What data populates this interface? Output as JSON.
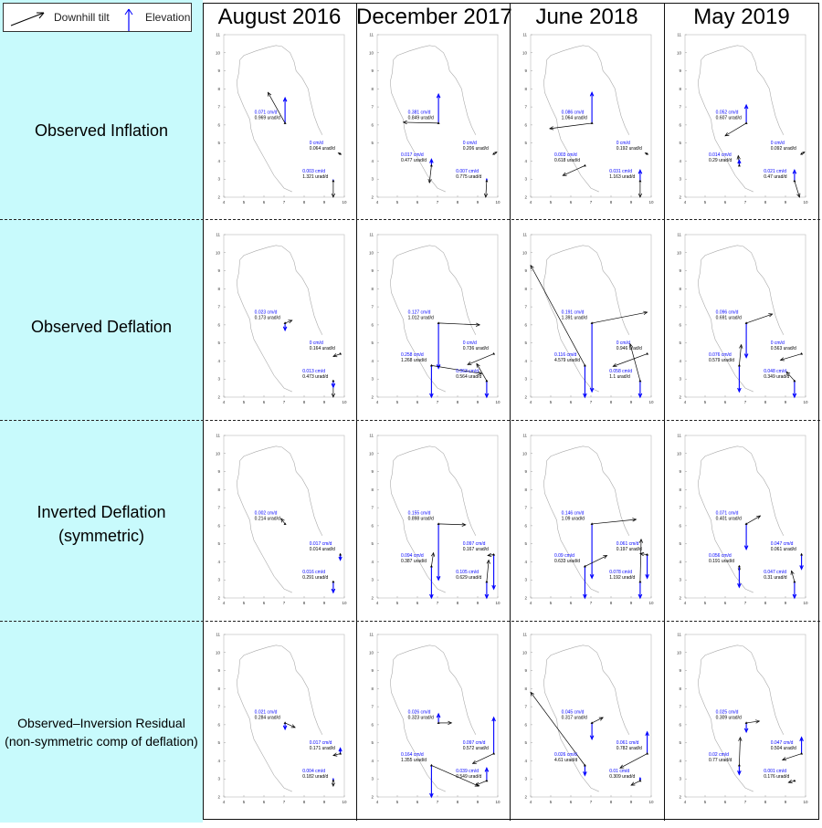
{
  "legend": {
    "tilt_label": "Downhill tilt",
    "elevation_label": "Elevation",
    "tilt_color": "#000000",
    "elevation_color": "#0000ff"
  },
  "columns": [
    "August 2016",
    "December 2017",
    "June 2018",
    "May 2019"
  ],
  "rows": [
    {
      "label_lines": [
        "Observed Inflation"
      ]
    },
    {
      "label_lines": [
        "Observed Deflation"
      ]
    },
    {
      "label_lines": [
        "Inverted Deflation",
        "(symmetric)"
      ]
    },
    {
      "label_lines": [
        "Observed–Inversion Residual",
        "(non-symmetric comp of deflation)"
      ]
    }
  ],
  "colors": {
    "background_left": "#c8fafc",
    "elevation": "#0000ff",
    "tilt": "#000000",
    "outline": "#aaaaaa"
  },
  "chart_data": {
    "type": "scatter",
    "description_type": "vector map grid",
    "xlim": [
      4,
      10
    ],
    "ylim": [
      2,
      11
    ],
    "xticks": [
      "4",
      "5",
      "6",
      "7",
      "8",
      "9",
      "10"
    ],
    "yticks": [
      "2",
      "3",
      "4",
      "5",
      "6",
      "7",
      "8",
      "9",
      "10",
      "11"
    ],
    "grid": false,
    "stations": {
      "A": [
        7.05,
        6.1
      ],
      "B": [
        6.7,
        3.75
      ],
      "C": [
        9.8,
        4.4
      ],
      "D": [
        9.45,
        2.9
      ]
    },
    "outline": [
      [
        7.4,
        2.3
      ],
      [
        7.0,
        2.5
      ],
      [
        6.5,
        3.2
      ],
      [
        6.0,
        4.2
      ],
      [
        5.5,
        5.2
      ],
      [
        5.35,
        5.8
      ],
      [
        5.3,
        6.3
      ],
      [
        5.0,
        7.0
      ],
      [
        4.7,
        7.8
      ],
      [
        4.65,
        8.4
      ],
      [
        4.75,
        8.9
      ],
      [
        4.8,
        9.6
      ],
      [
        5.0,
        9.85
      ],
      [
        5.6,
        10.1
      ],
      [
        6.2,
        10.3
      ],
      [
        6.6,
        10.4
      ],
      [
        6.9,
        10.35
      ],
      [
        7.3,
        10.0
      ],
      [
        7.5,
        9.5
      ],
      [
        7.6,
        9.0
      ],
      [
        7.9,
        8.6
      ],
      [
        8.2,
        8.0
      ],
      [
        8.3,
        7.4
      ],
      [
        8.5,
        6.5
      ],
      [
        8.7,
        5.9
      ],
      [
        8.9,
        5.45
      ]
    ],
    "panels": [
      [
        {
          "A": {
            "elev": "0.071 cm/d",
            "tilt": "0.969 urad/d",
            "tilt_end": [
              6.2,
              7.8
            ],
            "elev_end": 7.5
          },
          "C": {
            "elev": "0 cm/d",
            "tilt": "0.064 urad/d",
            "tilt_end": [
              9.7,
              4.45
            ],
            "elev_end": 4.4
          },
          "D": {
            "elev": "0.003 cm/d",
            "tilt": "1.321 urad/d",
            "tilt_end": [
              9.45,
              2.0
            ],
            "elev_end": 2.95
          }
        },
        {
          "A": {
            "elev": "0.381 cm/d",
            "tilt": "0.849 urad/d",
            "tilt_end": [
              5.3,
              6.15
            ],
            "elev_end": 7.7
          },
          "B": {
            "elev": "0.017 cm/d",
            "tilt": "0.477 urad/d",
            "tilt_end": [
              6.6,
              2.8
            ],
            "elev_end": 4.1
          },
          "C": {
            "elev": "0 cm/d",
            "tilt": "0.206 urad/d",
            "tilt_end": [
              9.95,
              4.5
            ],
            "elev_end": 4.4
          },
          "D": {
            "elev": "0.007 cm/d",
            "tilt": "0.775 urad/d",
            "tilt_end": [
              9.4,
              2.0
            ],
            "elev_end": 3.0
          }
        },
        {
          "A": {
            "elev": "0.086 cm/d",
            "tilt": "1.064 urad/d",
            "tilt_end": [
              4.95,
              5.8
            ],
            "elev_end": 7.8
          },
          "B": {
            "elev": "0.003 cm/d",
            "tilt": "0.618 urad/d",
            "tilt_end": [
              5.6,
              3.2
            ],
            "elev_end": 3.75
          },
          "C": {
            "elev": "0 cm/d",
            "tilt": "0.192 urad/d",
            "tilt_end": [
              9.7,
              4.45
            ],
            "elev_end": 4.4
          },
          "D": {
            "elev": "0.031 cm/d",
            "tilt": "1.163 urad/d",
            "tilt_end": [
              9.45,
              2.0
            ],
            "elev_end": 3.5
          }
        },
        {
          "A": {
            "elev": "0.052 cm/d",
            "tilt": "0.607 urad/d",
            "tilt_end": [
              6.0,
              5.4
            ],
            "elev_end": 7.1
          },
          "B": {
            "elev": "0.014 cm/d",
            "tilt": "0.29 urad/d",
            "tilt_end": [
              6.65,
              4.3
            ],
            "elev_end": 4.05
          },
          "C": {
            "elev": "0 cm/d",
            "tilt": "0.092 urad/d",
            "tilt_end": [
              9.95,
              4.5
            ],
            "elev_end": 4.4
          },
          "D": {
            "elev": "0.021 cm/d",
            "tilt": "0.47 urad/d",
            "tilt_end": [
              9.7,
              2.0
            ],
            "elev_end": 3.5
          }
        }
      ],
      [
        {
          "A": {
            "elev": "0.023 cm/d",
            "tilt": "0.173 urad/d",
            "tilt_end": [
              7.4,
              6.25
            ],
            "elev_end": 5.7
          },
          "C": {
            "elev": "0 cm/d",
            "tilt": "0.164 urad/d",
            "tilt_end": [
              9.45,
              4.25
            ],
            "elev_end": 4.4
          },
          "D": {
            "elev": "0.013 cm/d",
            "tilt": "0.473 urad/d",
            "tilt_end": [
              9.45,
              2.0
            ],
            "elev_end": 2.55
          }
        },
        {
          "A": {
            "elev": "0.127 cm/d",
            "tilt": "1.012 urad/d",
            "tilt_end": [
              9.1,
              6.0
            ],
            "elev_end": 3.6
          },
          "B": {
            "elev": "0.258 cm/d",
            "tilt": "1.268 urad/d",
            "tilt_end": [
              9.2,
              3.3
            ],
            "elev_end": 2.0
          },
          "C": {
            "elev": "0 cm/d",
            "tilt": "0.736 urad/d",
            "tilt_end": [
              8.5,
              3.8
            ],
            "elev_end": 4.4
          },
          "D": {
            "elev": "0.063 cm/d",
            "tilt": "0.564 urad/d",
            "tilt_end": [
              8.95,
              3.85
            ],
            "elev_end": 2.0
          }
        },
        {
          "A": {
            "elev": "0.191 cm/d",
            "tilt": "1.391 urad/d",
            "tilt_end": [
              9.8,
              6.7
            ],
            "elev_end": 2.3
          },
          "B": {
            "elev": "0.116 cm/d",
            "tilt": "4.579 urad/d",
            "tilt_end": [
              4.0,
              9.3
            ],
            "elev_end": 2.0
          },
          "C": {
            "elev": "0 cm/d",
            "tilt": "0.946 urad/d",
            "tilt_end": [
              8.1,
              3.7
            ],
            "elev_end": 4.4
          },
          "D": {
            "elev": "0.058 cm/d",
            "tilt": "1.1 urad/d",
            "tilt_end": [
              8.95,
              4.95
            ],
            "elev_end": 2.0
          }
        },
        {
          "A": {
            "elev": "0.096 cm/d",
            "tilt": "0.691 urad/d",
            "tilt_end": [
              8.35,
              6.6
            ],
            "elev_end": 4.2
          },
          "B": {
            "elev": "0.076 cm/d",
            "tilt": "0.579 urad/d",
            "tilt_end": [
              6.8,
              4.9
            ],
            "elev_end": 2.3
          },
          "C": {
            "elev": "0 cm/d",
            "tilt": "0.563 urad/d",
            "tilt_end": [
              8.75,
              4.05
            ],
            "elev_end": 4.4
          },
          "D": {
            "elev": "0.048 cm/d",
            "tilt": "0.349 urad/d",
            "tilt_end": [
              9.05,
              3.4
            ],
            "elev_end": 2.0
          }
        }
      ],
      [
        {
          "A": {
            "elev": "0.002 cm/d",
            "tilt": "0.214 urad/d",
            "tilt_end": [
              6.85,
              6.4
            ],
            "elev_end": 6.1
          },
          "C": {
            "elev": "0.017 cm/d",
            "tilt": "0.014 urad/d",
            "tilt_end": [
              9.8,
              4.45
            ],
            "elev_end": 4.1
          },
          "D": {
            "elev": "0.016 cm/d",
            "tilt": "0.291 urad/d",
            "tilt_end": [
              9.45,
              2.3
            ],
            "elev_end": 2.3
          }
        },
        {
          "A": {
            "elev": "0.155 cm/d",
            "tilt": "0.898 urad/d",
            "tilt_end": [
              8.4,
              6.05
            ],
            "elev_end": 3.0
          },
          "B": {
            "elev": "0.094 cm/d",
            "tilt": "0.387 urad/d",
            "tilt_end": [
              6.8,
              4.5
            ],
            "elev_end": 2.0
          },
          "C": {
            "elev": "0.097 cm/d",
            "tilt": "0.167 urad/d",
            "tilt_end": [
              9.5,
              4.35
            ],
            "elev_end": 2.5
          },
          "D": {
            "elev": "0.105 cm/d",
            "tilt": "0.629 urad/d",
            "tilt_end": [
              9.55,
              4.1
            ],
            "elev_end": 2.0
          }
        },
        {
          "A": {
            "elev": "0.146 cm/d",
            "tilt": "1.09 urad/d",
            "tilt_end": [
              9.25,
              6.35
            ],
            "elev_end": 3.1
          },
          "B": {
            "elev": "0.09 cm/d",
            "tilt": "0.633 urad/d",
            "tilt_end": [
              7.8,
              4.35
            ],
            "elev_end": 2.0
          },
          "C": {
            "elev": "0.061 cm/d",
            "tilt": "0.197 urad/d",
            "tilt_end": [
              9.45,
              4.45
            ],
            "elev_end": 3.1
          },
          "D": {
            "elev": "0.078 cm/d",
            "tilt": "1.192 urad/d",
            "tilt_end": [
              9.5,
              5.25
            ],
            "elev_end": 2.0
          }
        },
        {
          "A": {
            "elev": "0.071 cm/d",
            "tilt": "0.401 urad/d",
            "tilt_end": [
              7.75,
              6.55
            ],
            "elev_end": 4.7
          },
          "B": {
            "elev": "0.056 cm/d",
            "tilt": "0.191 urad/d",
            "tilt_end": [
              6.7,
              3.5
            ],
            "elev_end": 2.6
          },
          "C": {
            "elev": "0.047 cm/d",
            "tilt": "0.061 urad/d",
            "tilt_end": [
              9.8,
              4.45
            ],
            "elev_end": 3.6
          },
          "D": {
            "elev": "0.047 cm/d",
            "tilt": "0.31 urad/d",
            "tilt_end": [
              9.3,
              3.5
            ],
            "elev_end": 2.0
          }
        }
      ],
      [
        {
          "A": {
            "elev": "0.021 cm/d",
            "tilt": "0.284 urad/d",
            "tilt_end": [
              7.55,
              5.85
            ],
            "elev_end": 5.75
          },
          "C": {
            "elev": "0.017 cm/d",
            "tilt": "0.171 urad/d",
            "tilt_end": [
              9.45,
              4.3
            ],
            "elev_end": 4.7
          },
          "D": {
            "elev": "0.004 cm/d",
            "tilt": "0.182 urad/d",
            "tilt_end": [
              9.45,
              2.6
            ],
            "elev_end": 3.0
          }
        },
        {
          "A": {
            "elev": "0.026 cm/d",
            "tilt": "0.323 urad/d",
            "tilt_end": [
              7.7,
              6.1
            ],
            "elev_end": 6.6
          },
          "B": {
            "elev": "0.164 cm/d",
            "tilt": "1.355 urad/d",
            "tilt_end": [
              9.05,
              2.6
            ],
            "elev_end": 2.0
          },
          "C": {
            "elev": "0.097 cm/d",
            "tilt": "0.572 urad/d",
            "tilt_end": [
              8.75,
              3.85
            ],
            "elev_end": 6.4
          },
          "D": {
            "elev": "0.039 cm/d",
            "tilt": "0.549 urad/d",
            "tilt_end": [
              8.9,
              2.65
            ],
            "elev_end": 3.6
          }
        },
        {
          "A": {
            "elev": "0.045 cm/d",
            "tilt": "0.317 urad/d",
            "tilt_end": [
              7.6,
              6.4
            ],
            "elev_end": 5.2
          },
          "B": {
            "elev": "0.026 cm/d",
            "tilt": "4.61 urad/d",
            "tilt_end": [
              4.0,
              7.8
            ],
            "elev_end": 3.2
          },
          "C": {
            "elev": "0.061 cm/d",
            "tilt": "0.782 urad/d",
            "tilt_end": [
              8.45,
              3.6
            ],
            "elev_end": 5.6
          },
          "D": {
            "elev": "0.01 cm/d",
            "tilt": "0.309 urad/d",
            "tilt_end": [
              9.0,
              2.65
            ],
            "elev_end": 3.05
          }
        },
        {
          "A": {
            "elev": "0.025 cm/d",
            "tilt": "0.309 urad/d",
            "tilt_end": [
              7.7,
              6.2
            ],
            "elev_end": 5.6
          },
          "B": {
            "elev": "0.02 cm/d",
            "tilt": "0.77 urad/d",
            "tilt_end": [
              6.75,
              5.3
            ],
            "elev_end": 3.25
          },
          "C": {
            "elev": "0.047 cm/d",
            "tilt": "0.504 urad/d",
            "tilt_end": [
              8.85,
              4.05
            ],
            "elev_end": 5.3
          },
          "D": {
            "elev": "0.001 cm/d",
            "tilt": "0.176 urad/d",
            "tilt_end": [
              9.15,
              2.8
            ],
            "elev_end": 2.9
          }
        }
      ]
    ]
  }
}
